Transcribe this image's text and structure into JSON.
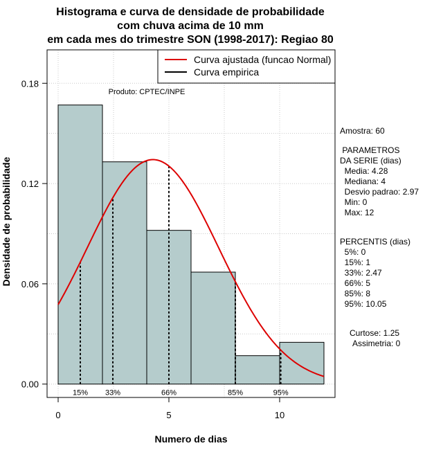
{
  "chart_data": {
    "type": "bar",
    "title": [
      "Histograma e curva de densidade de probabilidade",
      "com chuva acima de 10 mm",
      "em cada mes do trimestre SON (1998-2017): Regiao 80"
    ],
    "xlabel": "Numero de dias",
    "ylabel": "Densidade de probabilidade",
    "xlim": [
      -0.5,
      12.5
    ],
    "ylim": [
      -0.008,
      0.2
    ],
    "x_ticks": [
      0,
      5,
      10
    ],
    "y_ticks": [
      0.0,
      0.06,
      0.12,
      0.18
    ],
    "y_tick_labels": [
      "0.00",
      "0.06",
      "0.12",
      "0.18"
    ],
    "grid": true,
    "histogram": {
      "bins": [
        {
          "x0": 0,
          "x1": 2,
          "density": 0.167
        },
        {
          "x0": 2,
          "x1": 4,
          "density": 0.133
        },
        {
          "x0": 4,
          "x1": 6,
          "density": 0.092
        },
        {
          "x0": 6,
          "x1": 8,
          "density": 0.067
        },
        {
          "x0": 8,
          "x1": 10,
          "density": 0.017
        },
        {
          "x0": 10,
          "x1": 12,
          "density": 0.025
        }
      ],
      "fill": "#b5cccc"
    },
    "normal_fit": {
      "mean": 4.28,
      "sd": 2.97,
      "x_from": 0,
      "x_to": 12,
      "color": "#dd0000"
    },
    "percentile_lines": [
      {
        "label": "15%",
        "x": 1
      },
      {
        "label": "33%",
        "x": 2.47
      },
      {
        "label": "66%",
        "x": 5
      },
      {
        "label": "85%",
        "x": 8
      },
      {
        "label": "95%",
        "x": 10.05
      }
    ],
    "legend": [
      {
        "label": "Curva ajustada (funcao Normal)",
        "color": "#dd0000"
      },
      {
        "label": "Curva empirica",
        "color": "#000000"
      }
    ],
    "legend_position": "top-right",
    "annotation": "Produto: CPTEC/INPE"
  },
  "side_panel": [
    "Amostra: 60",
    " PARAMETROS",
    "DA SERIE (dias)",
    "  Media: 4.28",
    "  Mediana: 4",
    "  Desvio padrao: 2.97",
    "  Min: 0",
    "  Max: 12",
    "PERCENTIS (dias)",
    "  5%: 0",
    "  15%: 1",
    "  33%: 2.47",
    "  66%: 5",
    "  85%: 8",
    "  95%: 10.05",
    "Curtose: 1.25",
    "Assimetria: 0"
  ]
}
